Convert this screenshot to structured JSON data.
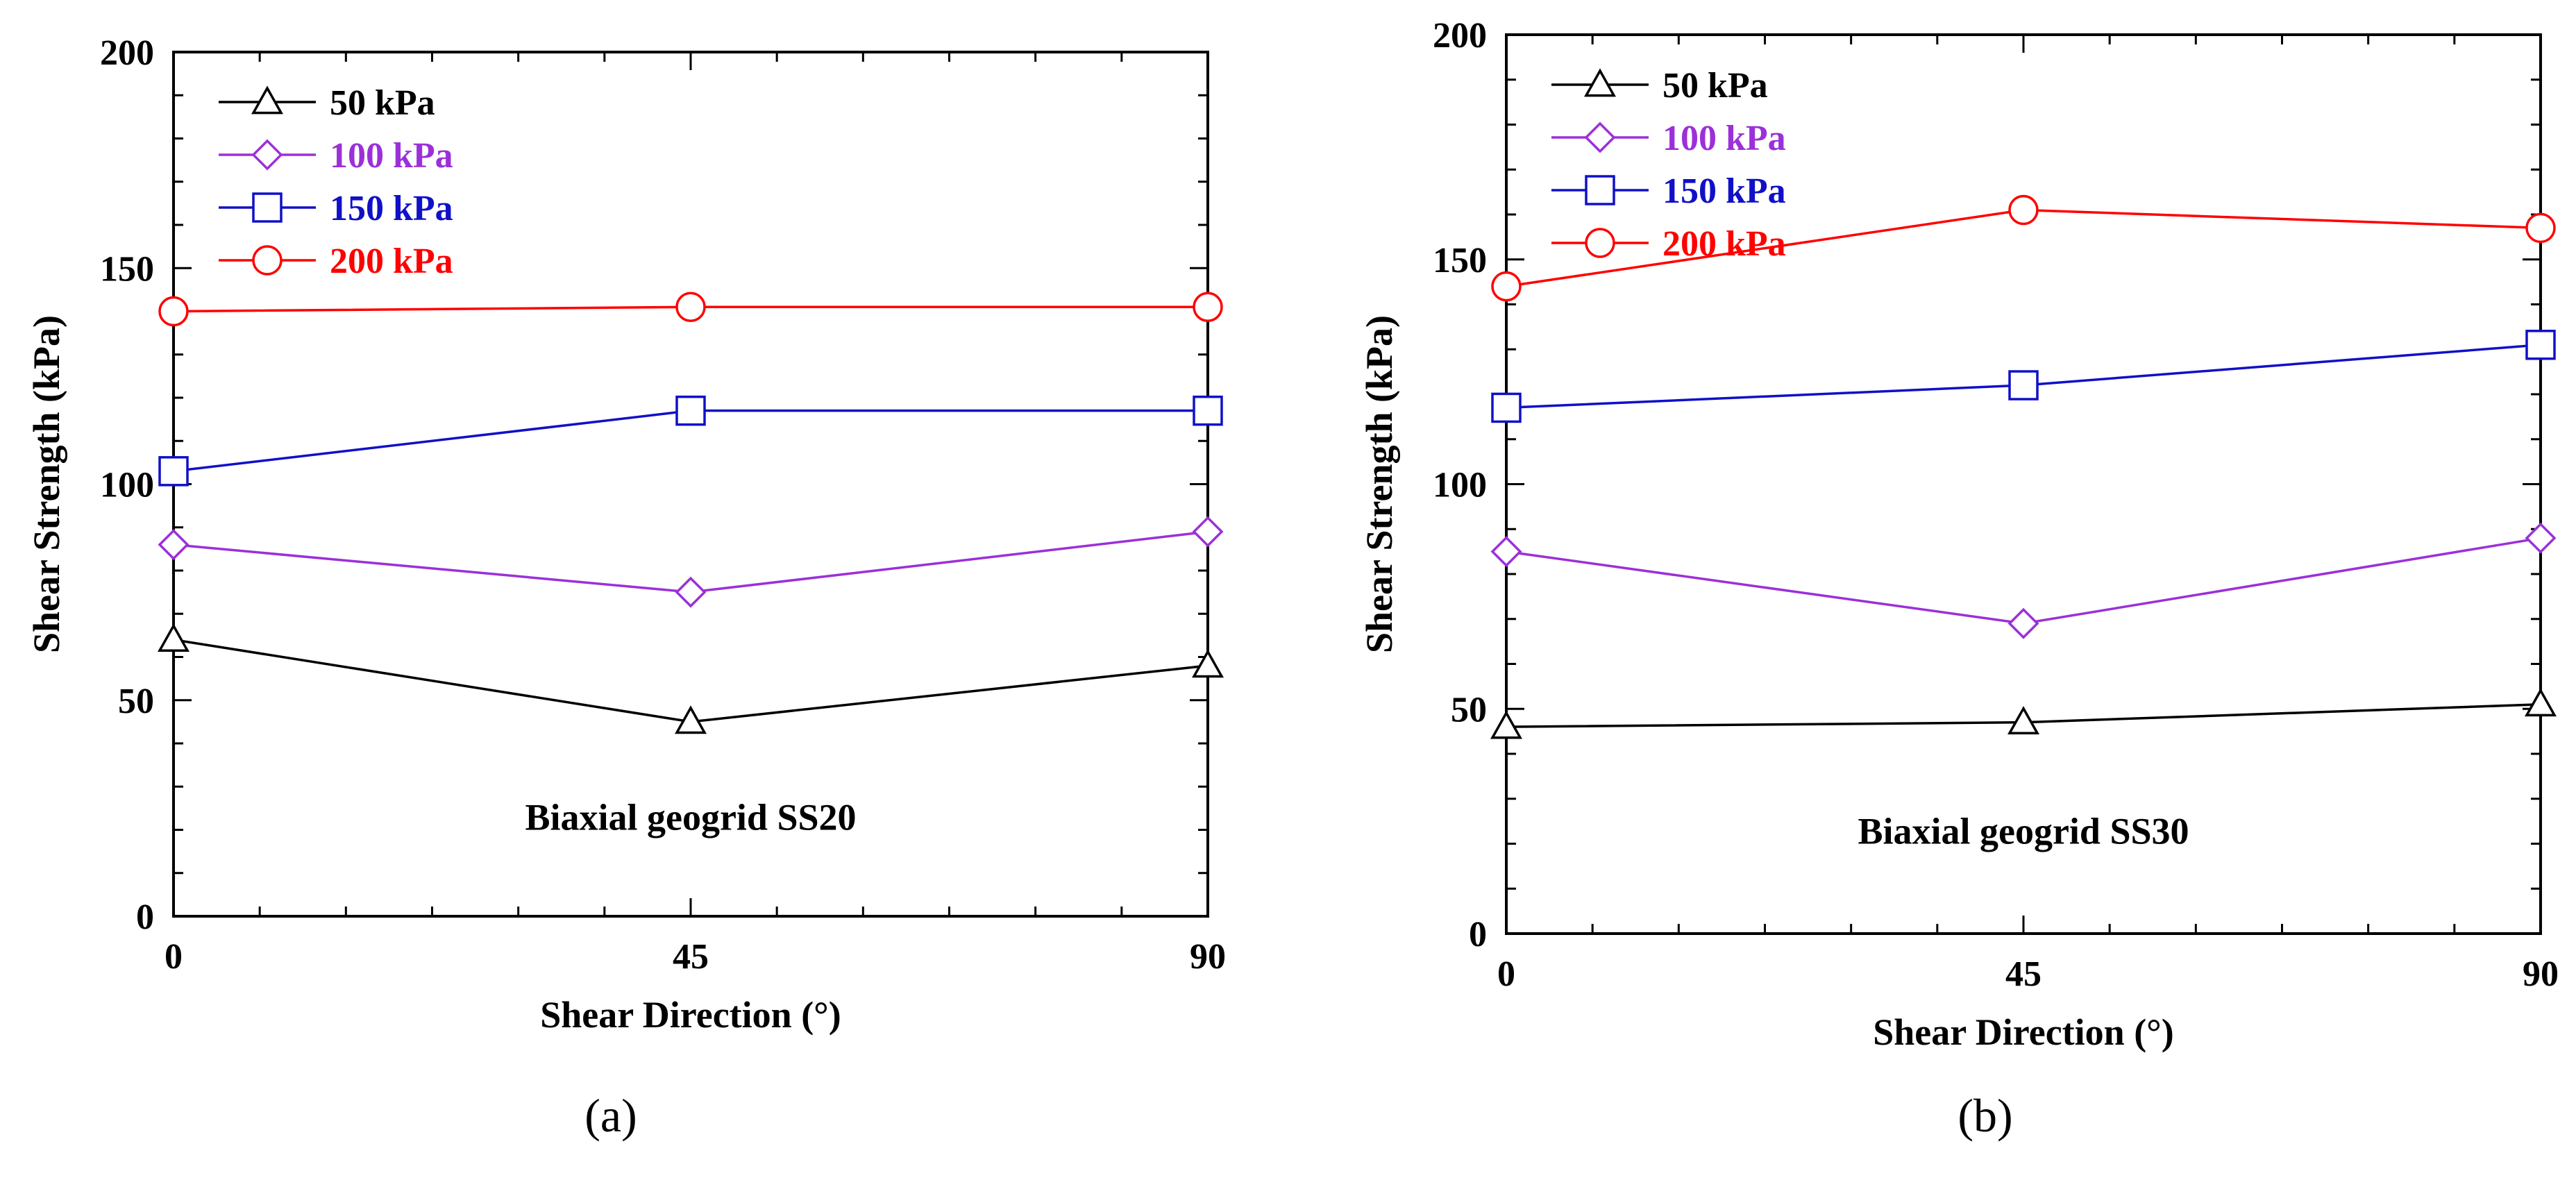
{
  "chart_data": [
    {
      "panel_label": "(a)",
      "type": "line",
      "annotation": "Biaxial geogrid SS20",
      "xlabel": "Shear Direction (°)",
      "ylabel": "Shear Strength (kPa)",
      "x": [
        0,
        45,
        90
      ],
      "x_tick_labels": [
        "0",
        "45",
        "90"
      ],
      "xlim": [
        0,
        90
      ],
      "ylim": [
        0,
        200
      ],
      "y_tick_labels": [
        "0",
        "50",
        "100",
        "150",
        "200"
      ],
      "y_ticks": [
        0,
        50,
        100,
        150,
        200
      ],
      "legend_position": "top-left",
      "series": [
        {
          "name": "50 kPa",
          "color": "#000000",
          "marker": "triangle",
          "values": [
            64,
            45,
            58
          ]
        },
        {
          "name": "100 kPa",
          "color": "#9b30d9",
          "marker": "diamond",
          "values": [
            86,
            75,
            89
          ]
        },
        {
          "name": "150 kPa",
          "color": "#1010c8",
          "marker": "square",
          "values": [
            103,
            117,
            117
          ]
        },
        {
          "name": "200 kPa",
          "color": "#ff0000",
          "marker": "circle",
          "values": [
            140,
            141,
            141
          ]
        }
      ]
    },
    {
      "panel_label": "(b)",
      "type": "line",
      "annotation": "Biaxial geogrid SS30",
      "xlabel": "Shear Direction (°)",
      "ylabel": "Shear Strength (kPa)",
      "x": [
        0,
        45,
        90
      ],
      "x_tick_labels": [
        "0",
        "45",
        "90"
      ],
      "xlim": [
        0,
        90
      ],
      "ylim": [
        0,
        200
      ],
      "y_tick_labels": [
        "0",
        "50",
        "100",
        "150",
        "200"
      ],
      "y_ticks": [
        0,
        50,
        100,
        150,
        200
      ],
      "legend_position": "top-left",
      "series": [
        {
          "name": "50 kPa",
          "color": "#000000",
          "marker": "triangle",
          "values": [
            46,
            47,
            51
          ]
        },
        {
          "name": "100 kPa",
          "color": "#9b30d9",
          "marker": "diamond",
          "values": [
            85,
            69,
            88
          ]
        },
        {
          "name": "150 kPa",
          "color": "#1010c8",
          "marker": "square",
          "values": [
            117,
            122,
            131
          ]
        },
        {
          "name": "200 kPa",
          "color": "#ff0000",
          "marker": "circle",
          "values": [
            144,
            161,
            157
          ]
        }
      ]
    }
  ]
}
